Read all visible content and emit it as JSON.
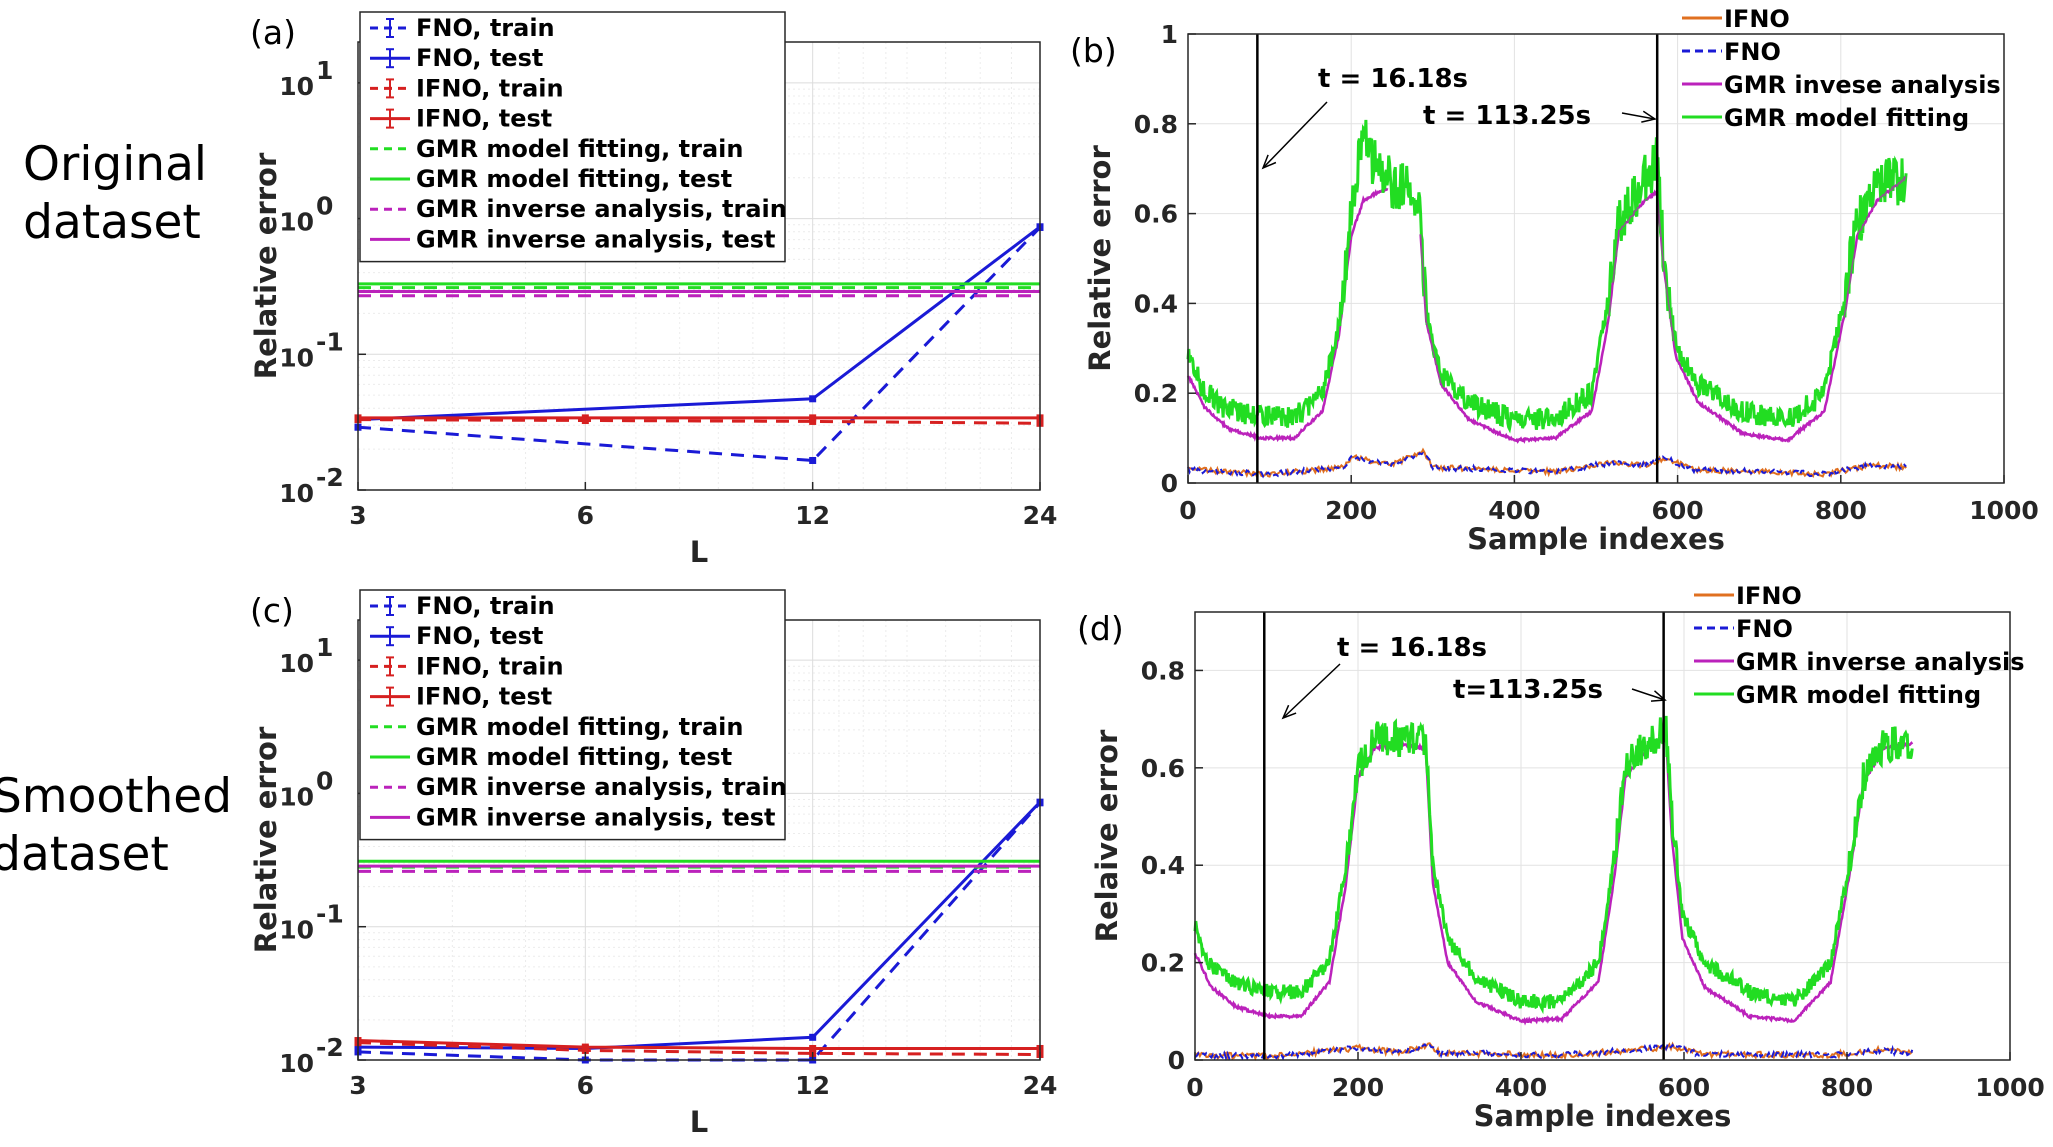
{
  "row_labels": {
    "top": [
      "Original",
      "dataset"
    ],
    "bottom": [
      "Smoothed",
      "dataset"
    ]
  },
  "colors": {
    "fno": "#1a1ad6",
    "ifno_left": "#d62020",
    "ifno_right": "#e07020",
    "gmr_fit": "#22dd22",
    "gmr_inv": "#bb22bb",
    "annot": "#000000"
  },
  "chart_data": [
    {
      "id": "a",
      "panel_label": "(a)",
      "type": "line",
      "xscale": "log2",
      "yscale": "log",
      "x": [
        3,
        6,
        12,
        24
      ],
      "xticks": [
        "3",
        "6",
        "12",
        "24"
      ],
      "ylim": [
        0.01,
        20
      ],
      "yticks": [
        {
          "value": 0.01,
          "base": "10",
          "exp": "-2"
        },
        {
          "value": 0.1,
          "base": "10",
          "exp": "-1"
        },
        {
          "value": 1,
          "base": "10",
          "exp": "0"
        },
        {
          "value": 10,
          "base": "10",
          "exp": "1"
        }
      ],
      "xlabel": "L",
      "ylabel": "Relative error",
      "legend_position": "top-left",
      "series": [
        {
          "name": "FNO, train",
          "color_key": "fno",
          "dash": true,
          "points": [
            [
              3,
              0.029
            ],
            [
              12,
              0.0165
            ],
            [
              24,
              0.86
            ]
          ]
        },
        {
          "name": "FNO, test",
          "color_key": "fno",
          "dash": false,
          "points": [
            [
              3,
              0.033
            ],
            [
              12,
              0.047
            ],
            [
              24,
              0.87
            ]
          ]
        },
        {
          "name": "IFNO, train",
          "color_key": "ifno_left",
          "dash": true,
          "points": [
            [
              3,
              0.033
            ],
            [
              6,
              0.0325
            ],
            [
              12,
              0.032
            ],
            [
              24,
              0.031
            ]
          ]
        },
        {
          "name": "IFNO, test",
          "color_key": "ifno_left",
          "dash": false,
          "points": [
            [
              3,
              0.034
            ],
            [
              6,
              0.034
            ],
            [
              12,
              0.034
            ],
            [
              24,
              0.034
            ]
          ]
        },
        {
          "name": "GMR model fitting, train",
          "color_key": "gmr_fit",
          "dash": true,
          "points": [
            [
              3,
              0.31
            ],
            [
              24,
              0.31
            ]
          ]
        },
        {
          "name": "GMR model fitting, test",
          "color_key": "gmr_fit",
          "dash": false,
          "points": [
            [
              3,
              0.33
            ],
            [
              24,
              0.33
            ]
          ]
        },
        {
          "name": "GMR inverse analysis, train",
          "color_key": "gmr_inv",
          "dash": true,
          "points": [
            [
              3,
              0.27
            ],
            [
              24,
              0.27
            ]
          ]
        },
        {
          "name": "GMR inverse analysis, test",
          "color_key": "gmr_inv",
          "dash": false,
          "points": [
            [
              3,
              0.29
            ],
            [
              24,
              0.29
            ]
          ]
        }
      ]
    },
    {
      "id": "b",
      "panel_label": "(b)",
      "type": "line",
      "xlim": [
        0,
        1000
      ],
      "xticks": [
        0,
        200,
        400,
        600,
        800,
        1000
      ],
      "ylim": [
        0,
        1
      ],
      "yticks": [
        0,
        0.2,
        0.4,
        0.6,
        0.8,
        1
      ],
      "ytick_labels": [
        "0",
        "0.2",
        "0.4",
        "0.6",
        "0.8",
        "1"
      ],
      "xlabel": "Sample indexes",
      "ylabel": "Relative error",
      "legend_position": "top-right",
      "legend": [
        "IFNO",
        "FNO",
        "GMR invese analysis",
        "GMR model fitting"
      ],
      "vlines": [
        85,
        575
      ],
      "annotations": [
        {
          "text": "t = 16.18s",
          "value": 85
        },
        {
          "text": "t = 113.25s",
          "value": 575
        }
      ],
      "series_profile": {
        "n_samples": 880,
        "gmr_fit_knots": [
          [
            0,
            0.3
          ],
          [
            15,
            0.22
          ],
          [
            40,
            0.17
          ],
          [
            80,
            0.15
          ],
          [
            130,
            0.145
          ],
          [
            165,
            0.2
          ],
          [
            185,
            0.35
          ],
          [
            200,
            0.6
          ],
          [
            215,
            0.78
          ],
          [
            228,
            0.71
          ],
          [
            240,
            0.68
          ],
          [
            282,
            0.64
          ],
          [
            292,
            0.38
          ],
          [
            310,
            0.24
          ],
          [
            345,
            0.18
          ],
          [
            400,
            0.14
          ],
          [
            450,
            0.145
          ],
          [
            495,
            0.2
          ],
          [
            515,
            0.4
          ],
          [
            528,
            0.58
          ],
          [
            555,
            0.66
          ],
          [
            575,
            0.72
          ],
          [
            583,
            0.5
          ],
          [
            598,
            0.3
          ],
          [
            625,
            0.22
          ],
          [
            680,
            0.16
          ],
          [
            735,
            0.14
          ],
          [
            780,
            0.2
          ],
          [
            805,
            0.42
          ],
          [
            820,
            0.58
          ],
          [
            845,
            0.66
          ],
          [
            880,
            0.68
          ]
        ],
        "gmr_inv_knots": [
          [
            0,
            0.24
          ],
          [
            20,
            0.17
          ],
          [
            50,
            0.12
          ],
          [
            90,
            0.1
          ],
          [
            130,
            0.1
          ],
          [
            165,
            0.16
          ],
          [
            185,
            0.33
          ],
          [
            200,
            0.55
          ],
          [
            215,
            0.63
          ],
          [
            240,
            0.655
          ],
          [
            282,
            0.64
          ],
          [
            292,
            0.36
          ],
          [
            310,
            0.22
          ],
          [
            345,
            0.14
          ],
          [
            400,
            0.095
          ],
          [
            450,
            0.1
          ],
          [
            495,
            0.16
          ],
          [
            515,
            0.36
          ],
          [
            528,
            0.56
          ],
          [
            560,
            0.63
          ],
          [
            575,
            0.65
          ],
          [
            583,
            0.48
          ],
          [
            598,
            0.28
          ],
          [
            625,
            0.18
          ],
          [
            680,
            0.11
          ],
          [
            735,
            0.095
          ],
          [
            780,
            0.16
          ],
          [
            805,
            0.38
          ],
          [
            820,
            0.55
          ],
          [
            845,
            0.63
          ],
          [
            880,
            0.68
          ]
        ],
        "gmr_inv_end": 245,
        "gmr_fit_noise": 0.035,
        "base_knots": [
          [
            0,
            0.03
          ],
          [
            100,
            0.02
          ],
          [
            190,
            0.035
          ],
          [
            200,
            0.058
          ],
          [
            250,
            0.04
          ],
          [
            288,
            0.07
          ],
          [
            300,
            0.035
          ],
          [
            450,
            0.025
          ],
          [
            520,
            0.045
          ],
          [
            560,
            0.04
          ],
          [
            585,
            0.055
          ],
          [
            620,
            0.03
          ],
          [
            780,
            0.02
          ],
          [
            840,
            0.04
          ],
          [
            880,
            0.035
          ]
        ]
      }
    },
    {
      "id": "c",
      "panel_label": "(c)",
      "type": "line",
      "xscale": "log2",
      "yscale": "log",
      "x": [
        3,
        6,
        12,
        24
      ],
      "xticks": [
        "3",
        "6",
        "12",
        "24"
      ],
      "ylim": [
        0.01,
        20
      ],
      "yticks": [
        {
          "value": 0.01,
          "base": "10",
          "exp": "-2"
        },
        {
          "value": 0.1,
          "base": "10",
          "exp": "-1"
        },
        {
          "value": 1,
          "base": "10",
          "exp": "0"
        },
        {
          "value": 10,
          "base": "10",
          "exp": "1"
        }
      ],
      "xlabel": "L",
      "ylabel": "Relative error",
      "legend_position": "top-left",
      "series": [
        {
          "name": "FNO, train",
          "color_key": "fno",
          "dash": true,
          "points": [
            [
              3,
              0.0115
            ],
            [
              6,
              0.01
            ],
            [
              12,
              0.01
            ],
            [
              24,
              0.85
            ]
          ]
        },
        {
          "name": "FNO, test",
          "color_key": "fno",
          "dash": false,
          "points": [
            [
              3,
              0.0125
            ],
            [
              6,
              0.0122
            ],
            [
              12,
              0.0148
            ],
            [
              24,
              0.86
            ]
          ]
        },
        {
          "name": "IFNO, train",
          "color_key": "ifno_left",
          "dash": true,
          "points": [
            [
              3,
              0.0135
            ],
            [
              6,
              0.0118
            ],
            [
              12,
              0.0112
            ],
            [
              24,
              0.011
            ]
          ]
        },
        {
          "name": "IFNO, test",
          "color_key": "ifno_left",
          "dash": false,
          "points": [
            [
              3,
              0.014
            ],
            [
              6,
              0.0125
            ],
            [
              12,
              0.0122
            ],
            [
              24,
              0.0122
            ]
          ]
        },
        {
          "name": "GMR model fitting, train",
          "color_key": "gmr_fit",
          "dash": true,
          "points": [
            [
              3,
              0.28
            ],
            [
              24,
              0.28
            ]
          ]
        },
        {
          "name": "GMR model fitting, test",
          "color_key": "gmr_fit",
          "dash": false,
          "points": [
            [
              3,
              0.31
            ],
            [
              24,
              0.31
            ]
          ]
        },
        {
          "name": "GMR inverse analysis, train",
          "color_key": "gmr_inv",
          "dash": true,
          "points": [
            [
              3,
              0.26
            ],
            [
              24,
              0.26
            ]
          ]
        },
        {
          "name": "GMR inverse analysis, test",
          "color_key": "gmr_inv",
          "dash": false,
          "points": [
            [
              3,
              0.285
            ],
            [
              24,
              0.285
            ]
          ]
        }
      ]
    },
    {
      "id": "d",
      "panel_label": "(d)",
      "type": "line",
      "xlim": [
        0,
        1000
      ],
      "xticks": [
        0,
        200,
        400,
        600,
        800,
        1000
      ],
      "ylim": [
        0,
        0.92
      ],
      "yticks": [
        0,
        0.2,
        0.4,
        0.6,
        0.8
      ],
      "ytick_labels": [
        "0",
        "0.2",
        "0.4",
        "0.6",
        "0.8"
      ],
      "xlabel": "Sample indexes",
      "ylabel": "Relaive error",
      "legend_position": "top-right",
      "legend": [
        "IFNO",
        "FNO",
        "GMR inverse analysis",
        "GMR model fitting"
      ],
      "vlines": [
        85,
        575
      ],
      "annotations": [
        {
          "text": "t = 16.18s",
          "value": 85
        },
        {
          "text": "t=113.25s",
          "value": 575
        }
      ],
      "series_profile": {
        "n_samples": 880,
        "gmr_fit_knots": [
          [
            0,
            0.28
          ],
          [
            15,
            0.2
          ],
          [
            50,
            0.16
          ],
          [
            90,
            0.14
          ],
          [
            130,
            0.14
          ],
          [
            165,
            0.2
          ],
          [
            185,
            0.4
          ],
          [
            200,
            0.6
          ],
          [
            220,
            0.66
          ],
          [
            250,
            0.66
          ],
          [
            283,
            0.65
          ],
          [
            292,
            0.4
          ],
          [
            310,
            0.25
          ],
          [
            345,
            0.17
          ],
          [
            400,
            0.12
          ],
          [
            450,
            0.12
          ],
          [
            495,
            0.2
          ],
          [
            515,
            0.42
          ],
          [
            528,
            0.6
          ],
          [
            555,
            0.65
          ],
          [
            578,
            0.68
          ],
          [
            585,
            0.5
          ],
          [
            598,
            0.3
          ],
          [
            625,
            0.2
          ],
          [
            680,
            0.14
          ],
          [
            735,
            0.12
          ],
          [
            780,
            0.2
          ],
          [
            805,
            0.42
          ],
          [
            820,
            0.58
          ],
          [
            845,
            0.65
          ],
          [
            880,
            0.65
          ]
        ],
        "gmr_inv_knots": [
          [
            0,
            0.22
          ],
          [
            20,
            0.15
          ],
          [
            50,
            0.11
          ],
          [
            90,
            0.09
          ],
          [
            130,
            0.09
          ],
          [
            165,
            0.16
          ],
          [
            185,
            0.36
          ],
          [
            200,
            0.58
          ],
          [
            220,
            0.64
          ],
          [
            250,
            0.65
          ],
          [
            283,
            0.64
          ],
          [
            292,
            0.36
          ],
          [
            310,
            0.2
          ],
          [
            345,
            0.12
          ],
          [
            400,
            0.08
          ],
          [
            450,
            0.085
          ],
          [
            495,
            0.16
          ],
          [
            515,
            0.38
          ],
          [
            528,
            0.58
          ],
          [
            555,
            0.64
          ],
          [
            578,
            0.66
          ],
          [
            585,
            0.46
          ],
          [
            598,
            0.25
          ],
          [
            625,
            0.15
          ],
          [
            680,
            0.09
          ],
          [
            735,
            0.08
          ],
          [
            780,
            0.16
          ],
          [
            805,
            0.4
          ],
          [
            820,
            0.57
          ],
          [
            845,
            0.64
          ],
          [
            880,
            0.65
          ]
        ],
        "gmr_inv_end": 880,
        "gmr_fit_noise": 0.022,
        "base_knots": [
          [
            0,
            0.01
          ],
          [
            100,
            0.008
          ],
          [
            200,
            0.025
          ],
          [
            250,
            0.015
          ],
          [
            288,
            0.032
          ],
          [
            300,
            0.015
          ],
          [
            450,
            0.01
          ],
          [
            540,
            0.02
          ],
          [
            585,
            0.028
          ],
          [
            620,
            0.012
          ],
          [
            780,
            0.01
          ],
          [
            840,
            0.02
          ],
          [
            880,
            0.015
          ]
        ]
      }
    }
  ]
}
